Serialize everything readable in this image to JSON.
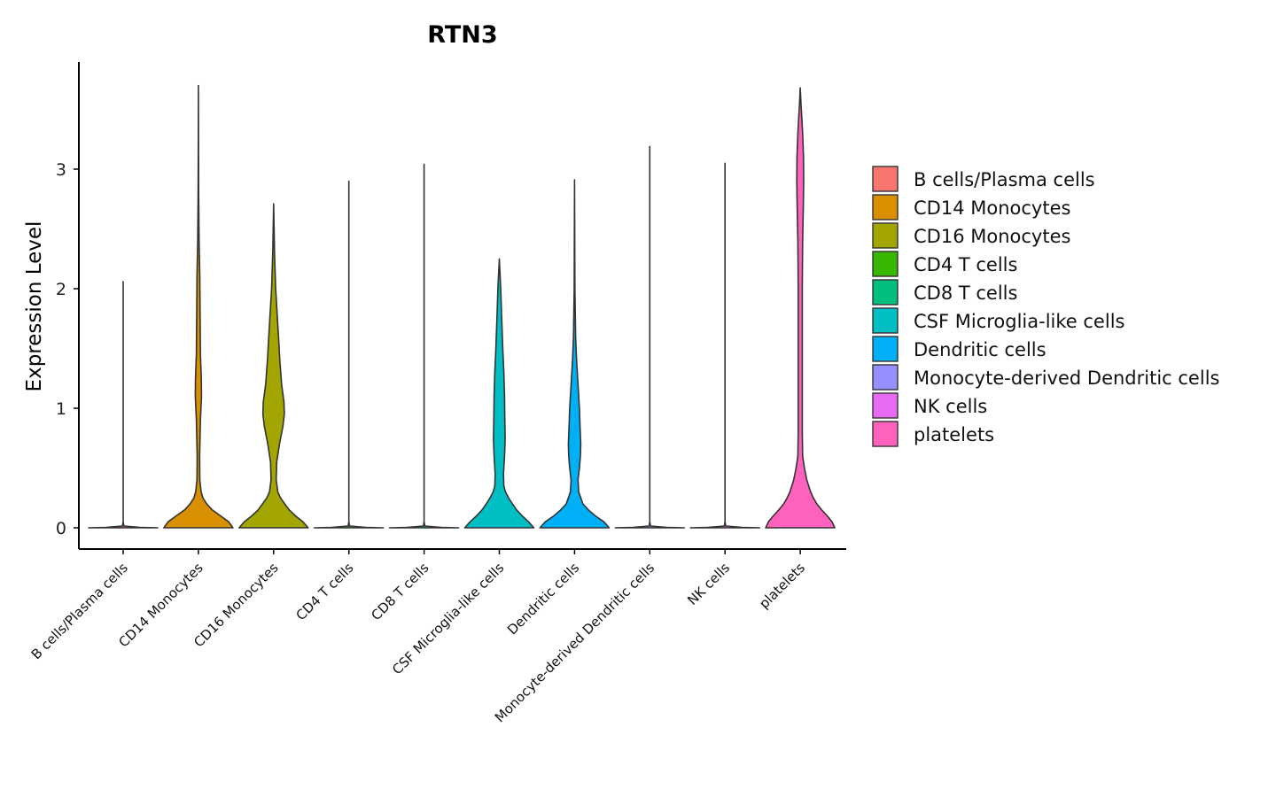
{
  "chart_data": {
    "type": "violin",
    "title": "RTN3",
    "xlabel": "",
    "ylabel": "Expression Level",
    "ylim": [
      -0.18,
      3.9
    ],
    "yticks": [
      0,
      1,
      2,
      3
    ],
    "categories": [
      "B cells/Plasma cells",
      "CD14 Monocytes",
      "CD16 Monocytes",
      "CD4 T cells",
      "CD8 T cells",
      "CSF Microglia-like cells",
      "Dendritic cells",
      "Monocyte-derived Dendritic cells",
      "NK cells",
      "platelets"
    ],
    "series": [
      {
        "name": "B cells/Plasma cells",
        "color": "#F8766D",
        "max": 2.06,
        "profile": [
          [
            0,
            1
          ],
          [
            0.004,
            0.5
          ],
          [
            0.015,
            0.02
          ],
          [
            0.05,
            0
          ],
          [
            2.06,
            0
          ]
        ]
      },
      {
        "name": "CD14 Monocytes",
        "color": "#D89000",
        "max": 3.7,
        "profile": [
          [
            0,
            1
          ],
          [
            0.05,
            0.88
          ],
          [
            0.1,
            0.64
          ],
          [
            0.15,
            0.4
          ],
          [
            0.2,
            0.24
          ],
          [
            0.25,
            0.13
          ],
          [
            0.3,
            0.08
          ],
          [
            0.4,
            0.04
          ],
          [
            0.6,
            0.035
          ],
          [
            0.9,
            0.06
          ],
          [
            1.1,
            0.09
          ],
          [
            1.25,
            0.085
          ],
          [
            1.45,
            0.06
          ],
          [
            1.8,
            0.05
          ],
          [
            2.1,
            0.04
          ],
          [
            2.4,
            0.02
          ],
          [
            2.8,
            0.008
          ],
          [
            3.3,
            0.003
          ],
          [
            3.7,
            0
          ]
        ]
      },
      {
        "name": "CD16 Monocytes",
        "color": "#A3A500",
        "max": 2.71,
        "profile": [
          [
            0,
            1
          ],
          [
            0.05,
            0.85
          ],
          [
            0.1,
            0.63
          ],
          [
            0.15,
            0.45
          ],
          [
            0.2,
            0.32
          ],
          [
            0.25,
            0.2
          ],
          [
            0.3,
            0.12
          ],
          [
            0.4,
            0.075
          ],
          [
            0.55,
            0.09
          ],
          [
            0.7,
            0.17
          ],
          [
            0.85,
            0.27
          ],
          [
            0.95,
            0.31
          ],
          [
            1.05,
            0.3
          ],
          [
            1.2,
            0.23
          ],
          [
            1.4,
            0.18
          ],
          [
            1.6,
            0.14
          ],
          [
            1.8,
            0.1
          ],
          [
            2.0,
            0.06
          ],
          [
            2.3,
            0.025
          ],
          [
            2.71,
            0
          ]
        ]
      },
      {
        "name": "CD4 T cells",
        "color": "#39B600",
        "max": 2.9,
        "profile": [
          [
            0,
            1
          ],
          [
            0.004,
            0.5
          ],
          [
            0.015,
            0.02
          ],
          [
            0.05,
            0
          ],
          [
            2.9,
            0
          ]
        ]
      },
      {
        "name": "CD8 T cells",
        "color": "#00BF7D",
        "max": 3.04,
        "profile": [
          [
            0,
            1
          ],
          [
            0.004,
            0.5
          ],
          [
            0.015,
            0.02
          ],
          [
            0.05,
            0
          ],
          [
            3.04,
            0
          ]
        ]
      },
      {
        "name": "CSF Microglia-like cells",
        "color": "#00BFC4",
        "max": 2.25,
        "profile": [
          [
            0,
            1
          ],
          [
            0.05,
            0.85
          ],
          [
            0.1,
            0.66
          ],
          [
            0.15,
            0.5
          ],
          [
            0.2,
            0.38
          ],
          [
            0.25,
            0.27
          ],
          [
            0.3,
            0.18
          ],
          [
            0.35,
            0.13
          ],
          [
            0.45,
            0.12
          ],
          [
            0.6,
            0.15
          ],
          [
            0.75,
            0.17
          ],
          [
            0.9,
            0.16
          ],
          [
            1.1,
            0.15
          ],
          [
            1.3,
            0.13
          ],
          [
            1.5,
            0.1
          ],
          [
            1.75,
            0.07
          ],
          [
            2.0,
            0.04
          ],
          [
            2.25,
            0
          ]
        ]
      },
      {
        "name": "Dendritic cells",
        "color": "#00B0F6",
        "max": 2.91,
        "profile": [
          [
            0,
            1
          ],
          [
            0.05,
            0.85
          ],
          [
            0.1,
            0.6
          ],
          [
            0.15,
            0.4
          ],
          [
            0.2,
            0.24
          ],
          [
            0.3,
            0.12
          ],
          [
            0.4,
            0.1
          ],
          [
            0.5,
            0.14
          ],
          [
            0.6,
            0.17
          ],
          [
            0.7,
            0.18
          ],
          [
            0.85,
            0.16
          ],
          [
            1.0,
            0.14
          ],
          [
            1.2,
            0.1
          ],
          [
            1.4,
            0.06
          ],
          [
            1.6,
            0.03
          ],
          [
            2.0,
            0.01
          ],
          [
            2.91,
            0
          ]
        ]
      },
      {
        "name": "Monocyte-derived Dendritic cells",
        "color": "#9590FF",
        "max": 3.19,
        "profile": [
          [
            0,
            1
          ],
          [
            0.004,
            0.5
          ],
          [
            0.015,
            0.02
          ],
          [
            0.05,
            0
          ],
          [
            3.19,
            0
          ]
        ]
      },
      {
        "name": "NK cells",
        "color": "#E76BF3",
        "max": 3.05,
        "profile": [
          [
            0,
            1
          ],
          [
            0.004,
            0.5
          ],
          [
            0.015,
            0.02
          ],
          [
            0.05,
            0
          ],
          [
            3.05,
            0
          ]
        ]
      },
      {
        "name": "platelets",
        "color": "#FF62BC",
        "max": 3.68,
        "profile": [
          [
            0,
            1
          ],
          [
            0.05,
            0.92
          ],
          [
            0.1,
            0.78
          ],
          [
            0.15,
            0.62
          ],
          [
            0.2,
            0.48
          ],
          [
            0.25,
            0.38
          ],
          [
            0.3,
            0.3
          ],
          [
            0.4,
            0.19
          ],
          [
            0.5,
            0.12
          ],
          [
            0.6,
            0.07
          ],
          [
            0.8,
            0.06
          ],
          [
            1.2,
            0.06
          ],
          [
            1.6,
            0.06
          ],
          [
            2.0,
            0.06
          ],
          [
            2.4,
            0.07
          ],
          [
            2.7,
            0.09
          ],
          [
            2.9,
            0.1
          ],
          [
            3.1,
            0.095
          ],
          [
            3.3,
            0.07
          ],
          [
            3.45,
            0.04
          ],
          [
            3.55,
            0.02
          ],
          [
            3.68,
            0
          ]
        ]
      }
    ],
    "legend_position": "right"
  }
}
